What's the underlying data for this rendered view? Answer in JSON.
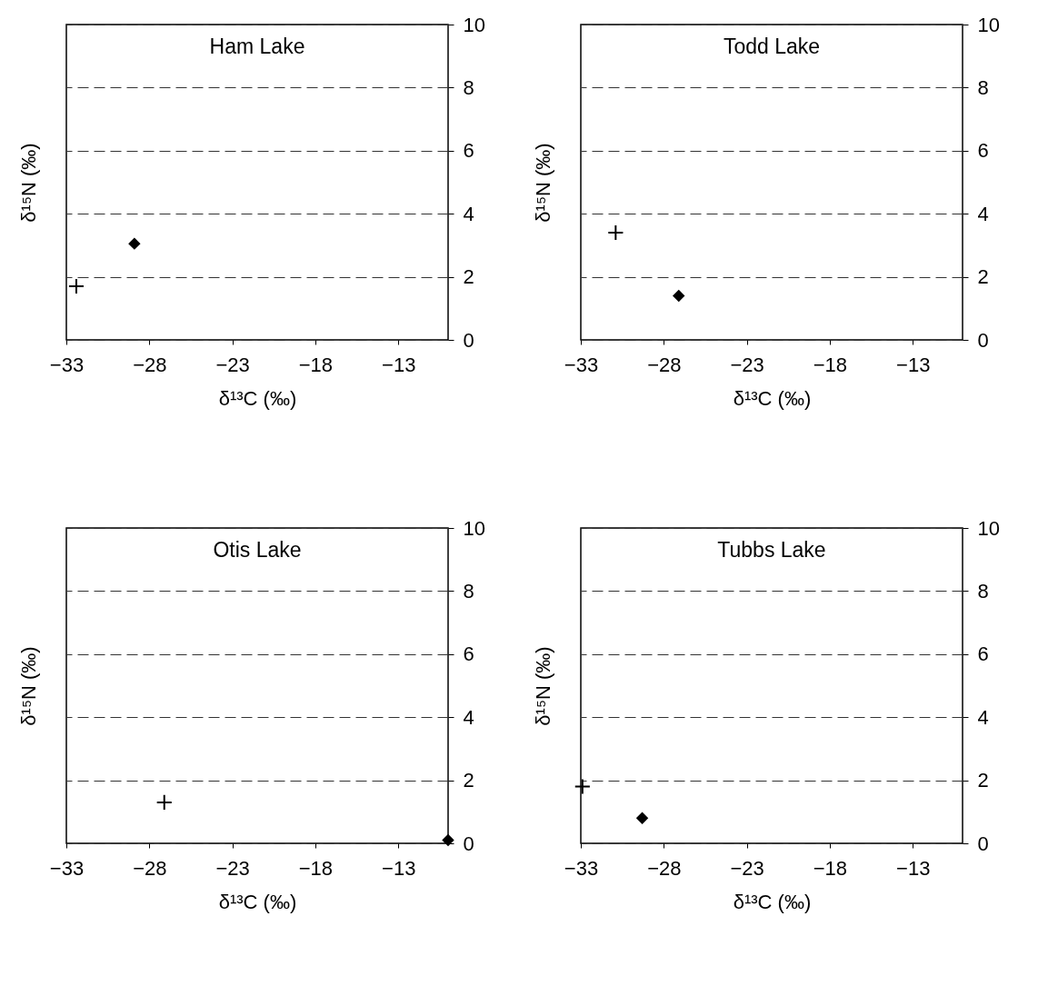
{
  "chart_data": [
    {
      "type": "scatter",
      "title": "Ham Lake",
      "xlabel": "δ¹³C (‰)",
      "ylabel": "δ¹⁵N (‰)",
      "xlim": [
        -33,
        -10
      ],
      "xticks": [
        -33,
        -28,
        -23,
        -18,
        -13
      ],
      "ylim": [
        0,
        10
      ],
      "yticks": [
        0,
        2,
        4,
        6,
        8,
        10
      ],
      "grid": "y",
      "series": [
        {
          "color": "#000000",
          "marker": "cross",
          "x": [
            -32.4
          ],
          "values": [
            1.7
          ]
        },
        {
          "color": "#000000",
          "marker": "diamond",
          "x": [
            -28.9
          ],
          "values": [
            3.05
          ]
        }
      ]
    },
    {
      "type": "scatter",
      "title": "Todd Lake",
      "xlabel": "δ¹³C (‰)",
      "ylabel": "δ¹⁵N (‰)",
      "xlim": [
        -33,
        -10
      ],
      "xticks": [
        -33,
        -28,
        -23,
        -18,
        -13
      ],
      "ylim": [
        0,
        10
      ],
      "yticks": [
        0,
        2,
        4,
        6,
        8,
        10
      ],
      "grid": "y",
      "series": [
        {
          "color": "#000000",
          "marker": "cross",
          "x": [
            -30.9
          ],
          "values": [
            3.4
          ]
        },
        {
          "color": "#000000",
          "marker": "diamond",
          "x": [
            -27.1
          ],
          "values": [
            1.4
          ]
        }
      ]
    },
    {
      "type": "scatter",
      "title": "Otis Lake",
      "xlabel": "δ¹³C (‰)",
      "ylabel": "δ¹⁵N (‰)",
      "xlim": [
        -33,
        -10
      ],
      "xticks": [
        -33,
        -28,
        -23,
        -18,
        -13
      ],
      "ylim": [
        0,
        10
      ],
      "yticks": [
        0,
        2,
        4,
        6,
        8,
        10
      ],
      "grid": "y",
      "series": [
        {
          "color": "#000000",
          "marker": "cross",
          "x": [
            -27.1
          ],
          "values": [
            1.3
          ]
        },
        {
          "color": "#000000",
          "marker": "diamond",
          "x": [
            -10
          ],
          "values": [
            0.1
          ]
        }
      ]
    },
    {
      "type": "scatter",
      "title": "Tubbs Lake",
      "xlabel": "δ¹³C (‰)",
      "ylabel": "δ¹⁵N (‰)",
      "xlim": [
        -33,
        -10
      ],
      "xticks": [
        -33,
        -28,
        -23,
        -18,
        -13
      ],
      "ylim": [
        0,
        10
      ],
      "yticks": [
        0,
        2,
        4,
        6,
        8,
        10
      ],
      "grid": "y",
      "series": [
        {
          "color": "#000000",
          "marker": "cross",
          "x": [
            -32.9
          ],
          "values": [
            1.8
          ]
        },
        {
          "color": "#000000",
          "marker": "diamond",
          "x": [
            -29.3
          ],
          "values": [
            0.8
          ]
        }
      ]
    }
  ]
}
